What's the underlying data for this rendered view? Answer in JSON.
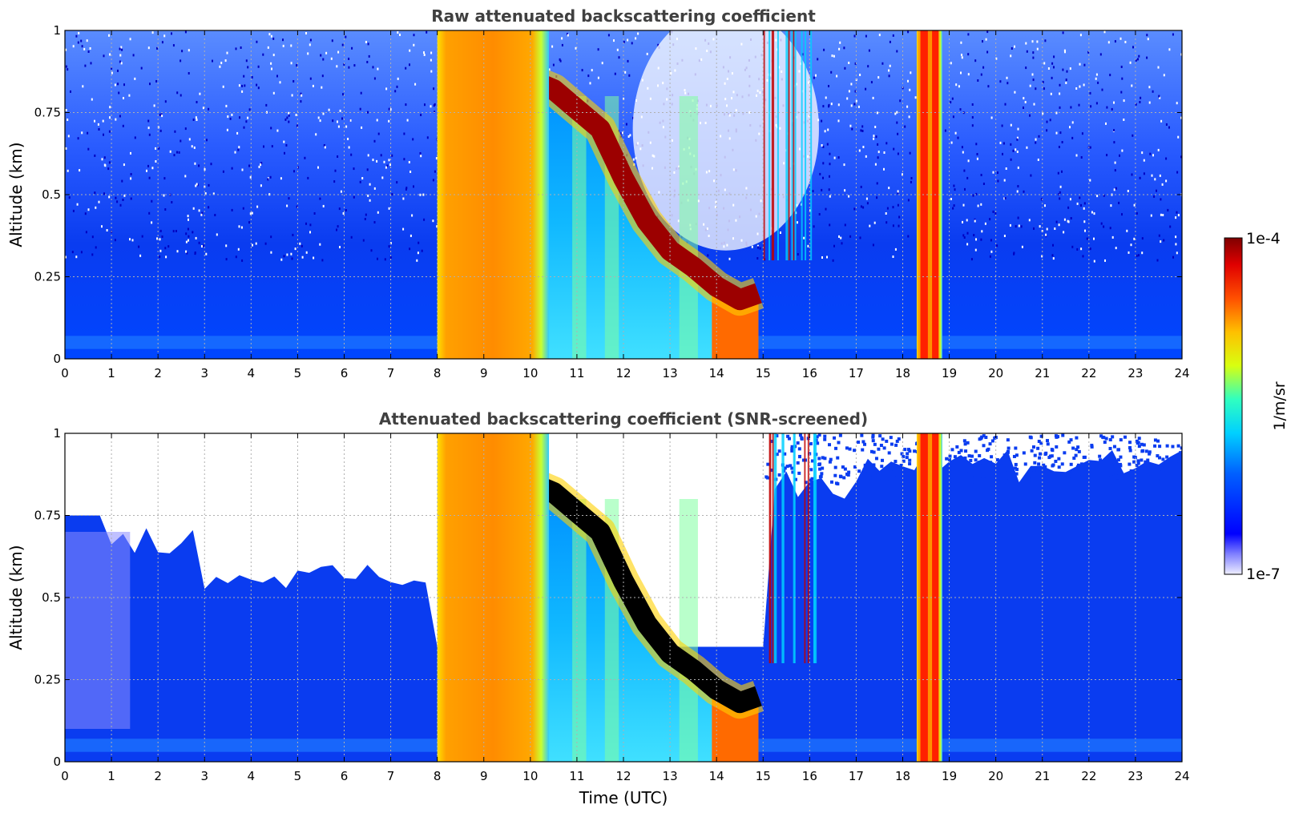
{
  "chart_data": [
    {
      "type": "heatmap",
      "title": "Raw attenuated backscattering coefficient",
      "xlabel": "",
      "ylabel": "Altitude (km)",
      "xlim": [
        0,
        24
      ],
      "ylim": [
        0,
        1
      ],
      "x_ticks": [
        "0",
        "1",
        "2",
        "3",
        "4",
        "5",
        "6",
        "7",
        "8",
        "9",
        "10",
        "11",
        "12",
        "13",
        "14",
        "15",
        "16",
        "17",
        "18",
        "19",
        "20",
        "21",
        "22",
        "23",
        "24"
      ],
      "y_ticks": [
        "0",
        "0.25",
        "0.5",
        "0.75",
        "1"
      ],
      "grid": true,
      "features": {
        "rain_bands_utc": [
          [
            8.0,
            10.4
          ],
          [
            18.3,
            18.85
          ]
        ],
        "fog_top_km": [
          [
            10.0,
            0.85
          ],
          [
            10.5,
            0.82
          ],
          [
            11.0,
            0.76
          ],
          [
            11.5,
            0.7
          ],
          [
            12.0,
            0.55
          ],
          [
            12.5,
            0.42
          ],
          [
            13.0,
            0.33
          ],
          [
            13.5,
            0.28
          ],
          [
            14.0,
            0.22
          ],
          [
            14.5,
            0.18
          ],
          [
            14.9,
            0.2
          ]
        ],
        "screened": false
      }
    },
    {
      "type": "heatmap",
      "title": "Attenuated backscattering coefficient (SNR-screened)",
      "xlabel": "Time (UTC)",
      "ylabel": "Altitude (km)",
      "xlim": [
        0,
        24
      ],
      "ylim": [
        0,
        1
      ],
      "x_ticks": [
        "0",
        "1",
        "2",
        "3",
        "4",
        "5",
        "6",
        "7",
        "8",
        "9",
        "10",
        "11",
        "12",
        "13",
        "14",
        "15",
        "16",
        "17",
        "18",
        "19",
        "20",
        "21",
        "22",
        "23",
        "24"
      ],
      "y_ticks": [
        "0",
        "0.25",
        "0.5",
        "0.75",
        "1"
      ],
      "grid": true,
      "features": {
        "rain_bands_utc": [
          [
            8.0,
            10.4
          ],
          [
            18.3,
            18.85
          ]
        ],
        "fog_top_km": [
          [
            10.0,
            0.85
          ],
          [
            10.5,
            0.82
          ],
          [
            11.0,
            0.76
          ],
          [
            11.5,
            0.7
          ],
          [
            12.0,
            0.55
          ],
          [
            12.5,
            0.42
          ],
          [
            13.0,
            0.33
          ],
          [
            13.5,
            0.28
          ],
          [
            14.0,
            0.22
          ],
          [
            14.5,
            0.18
          ],
          [
            14.9,
            0.2
          ]
        ],
        "screened": true
      }
    }
  ],
  "colorbar": {
    "label": "1/m/sr",
    "max_label": "1e-4",
    "min_label": "1e-7",
    "scale": "log",
    "range": [
      1e-07,
      0.0001
    ],
    "colormap": "jet"
  }
}
